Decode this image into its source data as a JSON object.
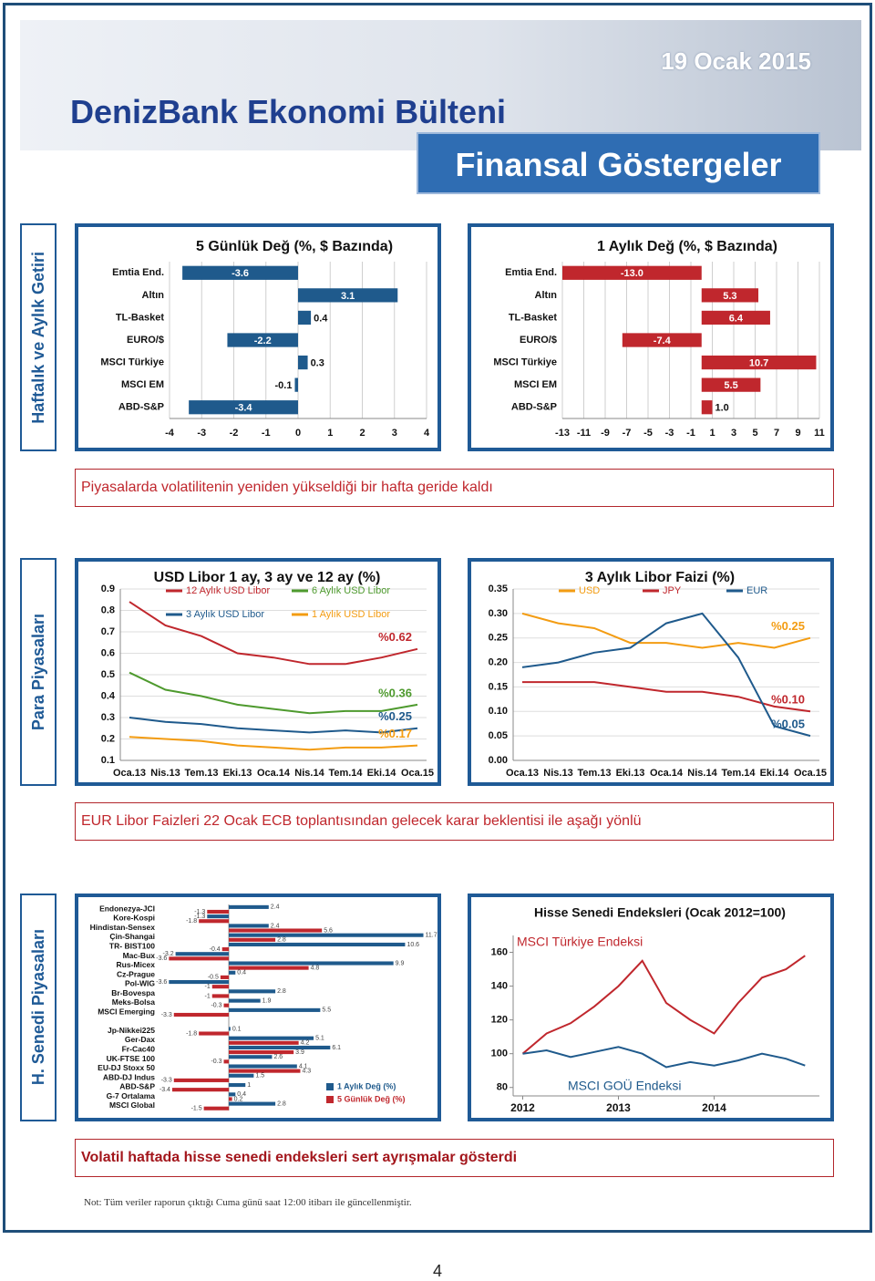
{
  "header": {
    "date": "19 Ocak 2015",
    "title": "DenizBank Ekonomi Bülteni",
    "subtitle": "Finansal Göstergeler"
  },
  "sections": [
    {
      "label": "Haftalık ve Aylık Getiri",
      "caption": "Piyasalarda volatilitenin yeniden yükseldiği bir hafta geride kaldı"
    },
    {
      "label": "Para Piyasaları",
      "caption": "EUR Libor Faizleri 22 Ocak ECB toplantısından gelecek karar beklentisi ile aşağı yönlü"
    },
    {
      "label": "H. Senedi Piyasaları",
      "caption": "Volatil haftada hisse senedi endeksleri sert ayrışmalar gösterdi"
    }
  ],
  "chart_data": [
    {
      "type": "hbar",
      "title": "5 Günlük Değ (%, $ Bazında)",
      "categories": [
        "Emtia End.",
        "Altın",
        "TL-Basket",
        "EURO/$",
        "MSCI Türkiye",
        "MSCI EM",
        "ABD-S&P"
      ],
      "values": [
        -3.6,
        3.1,
        0.4,
        -2.2,
        0.3,
        -0.1,
        -3.4
      ],
      "color": "#1f5a8c",
      "xlim": [
        -4,
        4
      ],
      "xticks": [
        -4,
        -3,
        -2,
        -1,
        0,
        1,
        2,
        3,
        4
      ],
      "grid": true
    },
    {
      "type": "hbar",
      "title": "1 Aylık Değ (%, $ Bazında)",
      "categories": [
        "Emtia End.",
        "Altın",
        "TL-Basket",
        "EURO/$",
        "MSCI Türkiye",
        "MSCI EM",
        "ABD-S&P"
      ],
      "values": [
        -13.0,
        5.3,
        6.4,
        -7.4,
        10.7,
        5.5,
        1.0
      ],
      "value_labels": [
        "-13.0",
        "5.3",
        "6.4",
        "-7.4",
        "10.7",
        "5.5",
        "1.0"
      ],
      "color": "#c0272d",
      "xlim": [
        -13,
        11
      ],
      "xticks": [
        -13,
        -11,
        -9,
        -7,
        -5,
        -3,
        -1,
        1,
        3,
        5,
        7,
        9,
        11
      ],
      "grid": true
    },
    {
      "type": "line",
      "title": "USD Libor 1 ay, 3 ay ve 12 ay (%)",
      "legend": "top",
      "categories": [
        "Oca.13",
        "Nis.13",
        "Tem.13",
        "Eki.13",
        "Oca.14",
        "Nis.14",
        "Tem.14",
        "Eki.14",
        "Oca.15"
      ],
      "series": [
        {
          "name": "12 Aylık USD Libor",
          "color": "#c0272d",
          "values": [
            0.84,
            0.73,
            0.68,
            0.6,
            0.58,
            0.55,
            0.55,
            0.58,
            0.62
          ],
          "end_label": "%0.62"
        },
        {
          "name": "6 Aylık USD Libor",
          "color": "#4e9a2e",
          "values": [
            0.51,
            0.43,
            0.4,
            0.36,
            0.34,
            0.32,
            0.33,
            0.33,
            0.36
          ],
          "end_label": "%0.36"
        },
        {
          "name": "3 Aylık USD Libor",
          "color": "#1f5a8c",
          "values": [
            0.3,
            0.28,
            0.27,
            0.25,
            0.24,
            0.23,
            0.24,
            0.23,
            0.25
          ],
          "end_label": "%0.25"
        },
        {
          "name": "1 Aylık USD Libor",
          "color": "#f39c12",
          "values": [
            0.21,
            0.2,
            0.19,
            0.17,
            0.16,
            0.15,
            0.16,
            0.16,
            0.17
          ],
          "end_label": "%0.17"
        }
      ],
      "ylim": [
        0.1,
        0.9
      ],
      "yticks": [
        0.1,
        0.2,
        0.3,
        0.4,
        0.5,
        0.6,
        0.7,
        0.8,
        0.9
      ],
      "grid": true
    },
    {
      "type": "line",
      "title": "3 Aylık Libor Faizi (%)",
      "legend": "top",
      "categories": [
        "Oca.13",
        "Nis.13",
        "Tem.13",
        "Eki.13",
        "Oca.14",
        "Nis.14",
        "Tem.14",
        "Eki.14",
        "Oca.15"
      ],
      "series": [
        {
          "name": "USD",
          "color": "#f39c12",
          "values": [
            0.3,
            0.28,
            0.27,
            0.24,
            0.24,
            0.23,
            0.24,
            0.23,
            0.25
          ],
          "end_label": "%0.25"
        },
        {
          "name": "JPY",
          "color": "#c0272d",
          "values": [
            0.16,
            0.16,
            0.16,
            0.15,
            0.14,
            0.14,
            0.13,
            0.11,
            0.1
          ],
          "end_label": "%0.10"
        },
        {
          "name": "EUR",
          "color": "#1f5a8c",
          "values": [
            0.19,
            0.2,
            0.22,
            0.23,
            0.28,
            0.3,
            0.21,
            0.07,
            0.05
          ],
          "end_label": "%0.05"
        }
      ],
      "ylim": [
        0,
        0.35
      ],
      "yticks": [
        {
          "value": 0,
          "label": "0.00"
        },
        0.05,
        {
          "value": 0.1,
          "label": "0.10"
        },
        0.15,
        {
          "value": 0.2,
          "label": "0.20"
        },
        0.25,
        {
          "value": 0.3,
          "label": "0.30"
        },
        0.35
      ],
      "grid": true
    },
    {
      "type": "grouped_hbar",
      "categories": [
        "Endonezya-JCI",
        "Kore-Kospi",
        "Hindistan-Sensex",
        "Çin-Shangai",
        "TR- BIST100",
        "Mac-Bux",
        "Rus-Micex",
        "Cz-Prague",
        "Pol-WIG",
        "Br-Bovespa",
        "Meks-Bolsa",
        "MSCI Emerging",
        null,
        "Jp-Nikkei225",
        "Ger-Dax",
        "Fr-Cac40",
        "UK-FTSE 100",
        "EU-DJ Stoxx 50",
        "ABD-DJ Indus",
        "ABD-S&P",
        "G-7 Ortalama",
        "MSCI Global"
      ],
      "series": [
        {
          "name": "1 Aylık Değ (%)",
          "color": "#1f5a8c",
          "values": [
            2.4,
            -1.3,
            2.4,
            11.7,
            10.6,
            -3.2,
            9.9,
            0.4,
            -3.6,
            2.8,
            1.9,
            5.5,
            null,
            0.1,
            5.1,
            6.1,
            2.6,
            4.1,
            1.5,
            1.0,
            0.4,
            2.8
          ]
        },
        {
          "name": "5 Günlük Değ (%)",
          "color": "#c0272d",
          "values": [
            -1.3,
            -1.8,
            5.6,
            2.8,
            -0.4,
            -3.6,
            4.8,
            -0.5,
            -1.0,
            -1.0,
            -0.3,
            -3.3,
            null,
            -1.8,
            4.2,
            3.9,
            -0.3,
            4.3,
            -3.3,
            -3.4,
            0.2,
            -1.5
          ]
        }
      ],
      "xlim": [
        -4,
        12
      ]
    },
    {
      "type": "line",
      "title": "Hisse Senedi Endeksleri (Ocak 2012=100)",
      "legend": "inline",
      "x": [
        2012,
        2012.25,
        2012.5,
        2012.75,
        2013,
        2013.25,
        2013.5,
        2013.75,
        2014,
        2014.25,
        2014.5,
        2014.75,
        2014.95
      ],
      "series": [
        {
          "name": "MSCI Türkiye Endeksi",
          "color": "#c0272d",
          "values": [
            100,
            112,
            118,
            128,
            140,
            155,
            130,
            120,
            112,
            130,
            145,
            150,
            158
          ]
        },
        {
          "name": "MSCI GOÜ Endeksi",
          "color": "#1f5a8c",
          "values": [
            100,
            102,
            98,
            101,
            104,
            100,
            92,
            95,
            93,
            96,
            100,
            97,
            93
          ]
        }
      ],
      "xlim": [
        2011.9,
        2015.1
      ],
      "xticks": [
        2012,
        2013,
        2014
      ],
      "ylim": [
        75,
        170
      ],
      "yticks": [
        80,
        100,
        120,
        140,
        160
      ],
      "grid": false
    }
  ],
  "note": "Not: Tüm veriler raporun çıktığı Cuma günü saat 12:00 itibarı ile güncellenmiştir.",
  "page_number": 4
}
